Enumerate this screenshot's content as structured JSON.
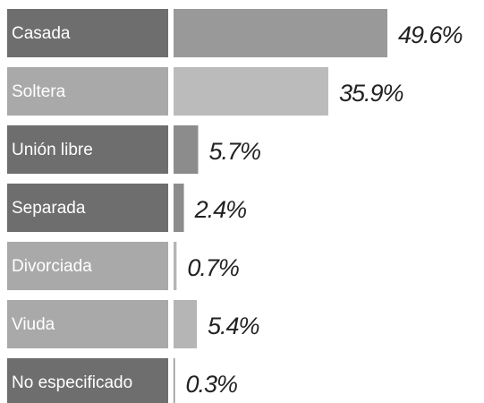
{
  "chart_data": {
    "type": "bar",
    "orientation": "horizontal",
    "categories": [
      "Casada",
      "Soltera",
      "Unión libre",
      "Separada",
      "Divorciada",
      "Viuda",
      "No especificado"
    ],
    "values": [
      49.6,
      35.9,
      5.7,
      2.4,
      0.7,
      5.4,
      0.3
    ],
    "value_labels": [
      "49.6%",
      "35.9%",
      "5.7%",
      "2.4%",
      "0.7%",
      "5.4%",
      "0.3%"
    ],
    "colors": [
      "#999999",
      "#bbbbbb",
      "#8c8c8c",
      "#8c8c8c",
      "#b5b5b5",
      "#b5b5b5",
      "#8c8c8c"
    ]
  }
}
